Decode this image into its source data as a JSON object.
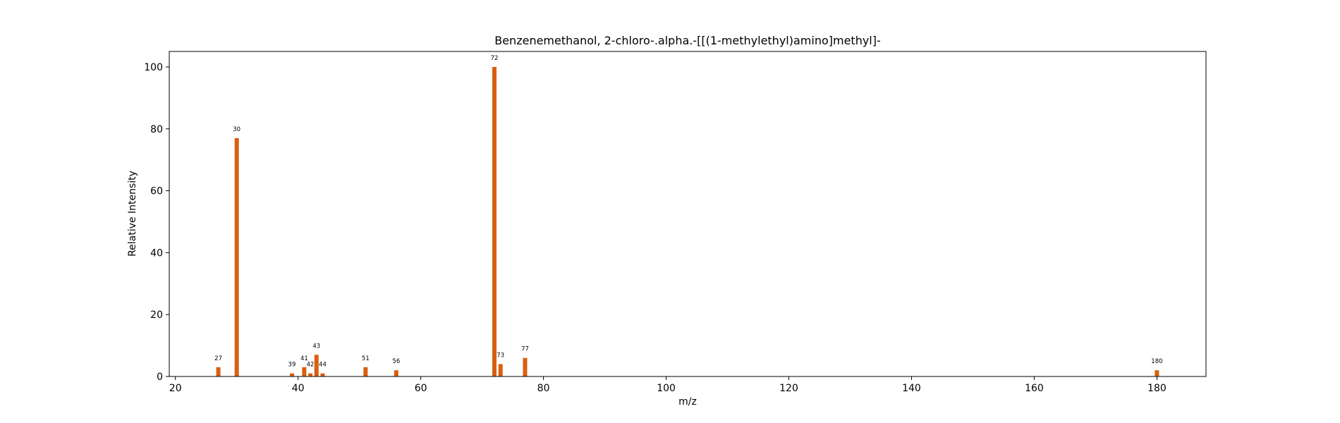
{
  "chart_data": {
    "type": "bar",
    "title": "Benzenemethanol, 2-chloro-.alpha.-[[(1-methylethyl)amino]methyl]-",
    "xlabel": "m/z",
    "ylabel": "Relative Intensity",
    "xlim": [
      19,
      188
    ],
    "ylim": [
      0,
      105
    ],
    "x_ticks": [
      20,
      40,
      60,
      80,
      100,
      120,
      140,
      160,
      180
    ],
    "y_ticks": [
      0,
      20,
      40,
      60,
      80,
      100
    ],
    "grid": false,
    "bar_color": "#d95f0e",
    "peaks": [
      {
        "mz": 27,
        "intensity": 3,
        "label": "27"
      },
      {
        "mz": 30,
        "intensity": 77,
        "label": "30"
      },
      {
        "mz": 39,
        "intensity": 1,
        "label": "39"
      },
      {
        "mz": 41,
        "intensity": 3,
        "label": "41"
      },
      {
        "mz": 42,
        "intensity": 1,
        "label": "42"
      },
      {
        "mz": 43,
        "intensity": 7,
        "label": "43"
      },
      {
        "mz": 44,
        "intensity": 1,
        "label": "44"
      },
      {
        "mz": 51,
        "intensity": 3,
        "label": "51"
      },
      {
        "mz": 56,
        "intensity": 2,
        "label": "56"
      },
      {
        "mz": 72,
        "intensity": 100,
        "label": "72"
      },
      {
        "mz": 73,
        "intensity": 4,
        "label": "73"
      },
      {
        "mz": 77,
        "intensity": 6,
        "label": "77"
      },
      {
        "mz": 180,
        "intensity": 2,
        "label": "180"
      }
    ]
  }
}
